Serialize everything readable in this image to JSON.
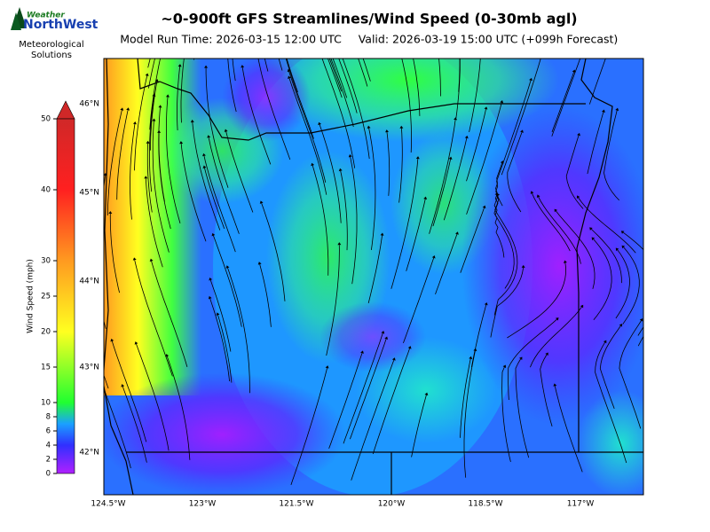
{
  "logo": {
    "brand_top": "Weather",
    "brand": "NorthWest",
    "org_line1": "Meteorological",
    "org_line2": "Solutions"
  },
  "title": "~0-900ft GFS Streamlines/Wind Speed (0-30mb agl)",
  "model_run": "Model Run Time: 2026-03-15 12:00 UTC",
  "valid": "Valid: 2026-03-19 15:00 UTC  (+099h Forecast)",
  "colorbar": {
    "label": "Wind Speed (mph)",
    "range": [
      0,
      50
    ],
    "ticks": [
      0,
      2,
      4,
      6,
      8,
      10,
      15,
      20,
      25,
      30,
      40,
      50
    ]
  },
  "map": {
    "lat_labels": [
      "46°N",
      "45°N",
      "44°N",
      "43°N",
      "42°N"
    ],
    "lon_labels": [
      "124.5°W",
      "123°W",
      "121.5°W",
      "120°W",
      "118.5°W",
      "117°W"
    ]
  }
}
